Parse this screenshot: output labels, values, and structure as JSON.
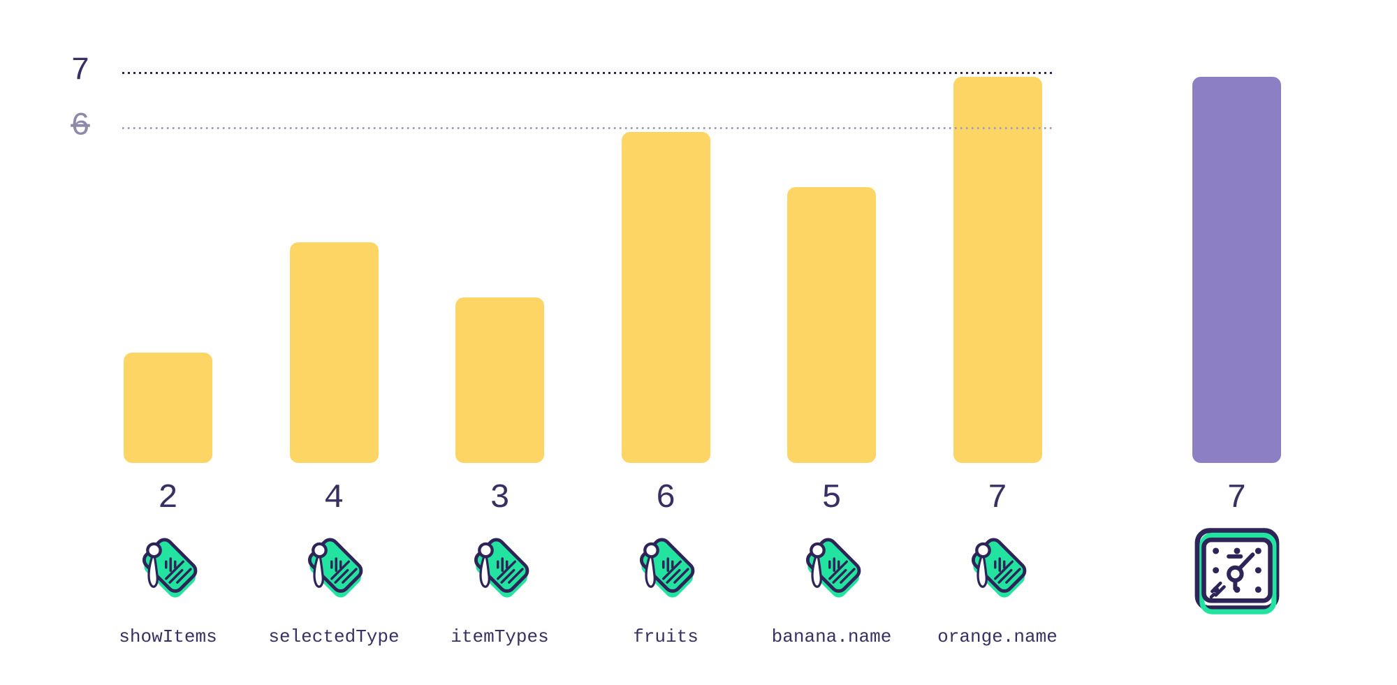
{
  "chart_data": {
    "type": "bar",
    "title": "",
    "xlabel": "",
    "ylabel": "",
    "ylim": [
      0,
      7.4
    ],
    "grid": "dotted-horizontal",
    "gridlines": [
      {
        "value": 7,
        "label": "7",
        "emphasis": "dark",
        "strikethrough": false
      },
      {
        "value": 6,
        "label": "6",
        "emphasis": "light",
        "strikethrough": true
      }
    ],
    "categories": [
      "showItems",
      "selectedType",
      "itemTypes",
      "fruits",
      "banana.name",
      "orange.name",
      ""
    ],
    "values": [
      2,
      4,
      3,
      6,
      5,
      7,
      7
    ],
    "bars": [
      {
        "name": "showItems",
        "value": 2,
        "icon": "tag",
        "group": "dependencies"
      },
      {
        "name": "selectedType",
        "value": 4,
        "icon": "tag",
        "group": "dependencies"
      },
      {
        "name": "itemTypes",
        "value": 3,
        "icon": "tag",
        "group": "dependencies"
      },
      {
        "name": "fruits",
        "value": 6,
        "icon": "tag",
        "group": "dependencies"
      },
      {
        "name": "banana.name",
        "value": 5,
        "icon": "tag",
        "group": "dependencies"
      },
      {
        "name": "orange.name",
        "value": 7,
        "icon": "tag",
        "group": "dependencies"
      },
      {
        "name": "",
        "value": 7,
        "icon": "gauge",
        "group": "render"
      }
    ],
    "legend": "none",
    "colors": {
      "dependency_bar": "#fdd564",
      "render_bar": "#8d7fc3",
      "grid_dark": "#2e2457",
      "grid_light": "#a39eba",
      "text_dark": "#3a2f63",
      "text_muted": "#8e89a8",
      "icon_green": "#23e3a0",
      "icon_outline": "#2e2457"
    }
  }
}
